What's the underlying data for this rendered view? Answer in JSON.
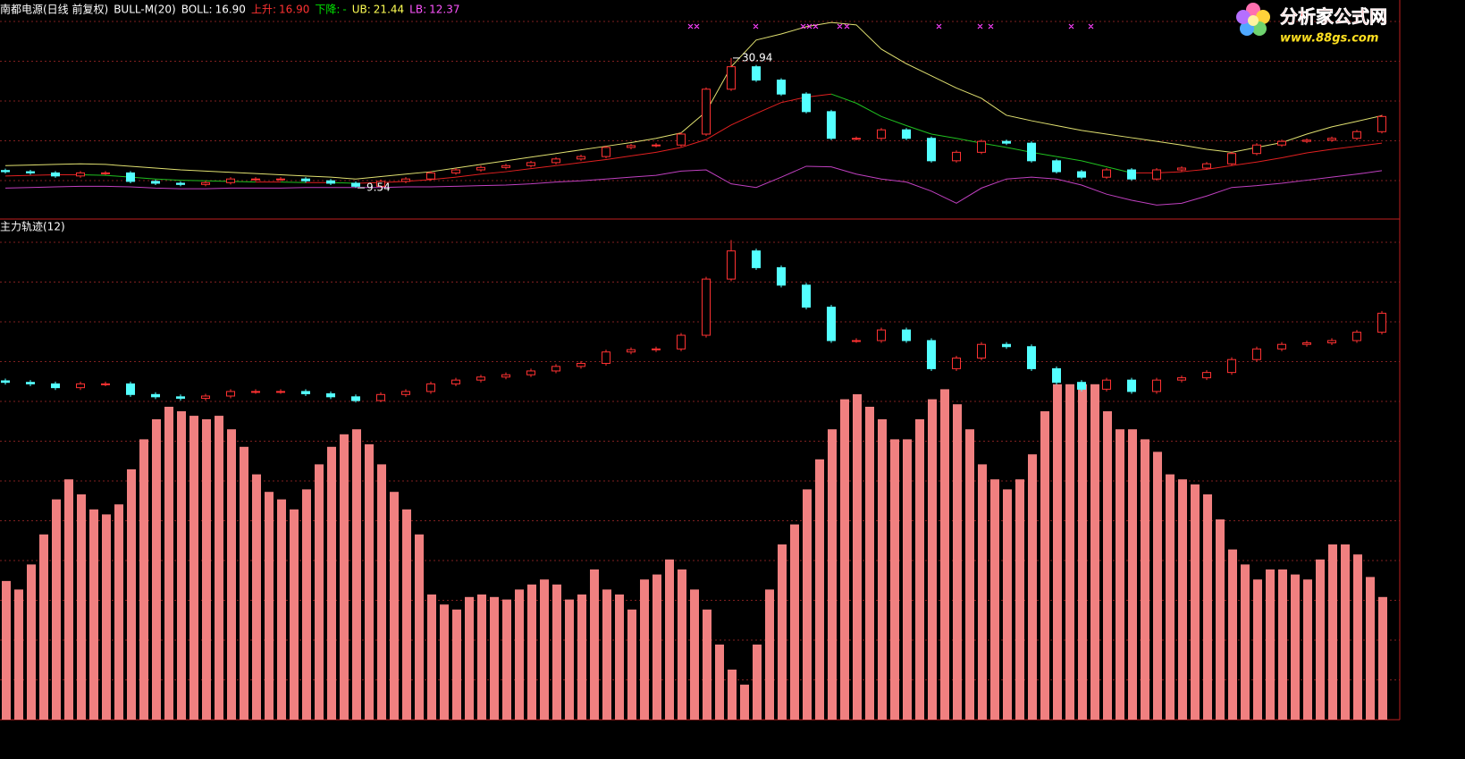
{
  "chart_data": [
    {
      "type": "candlestick",
      "title": "南都电源(日线 前复权)",
      "indicator": "BULL-M(20)",
      "legend": [
        {
          "name": "BOLL:",
          "value": "16.90",
          "color": "#ffffff"
        },
        {
          "name": "上升:",
          "value": "16.90",
          "color": "#ff3232"
        },
        {
          "name": "下降:",
          "value": "-",
          "color": "#00e600"
        },
        {
          "name": "UB:",
          "value": "21.44",
          "color": "#ffff54"
        },
        {
          "name": "LB:",
          "value": "12.37",
          "color": "#ff54ff"
        }
      ],
      "ylim": [
        4.4,
        40.5
      ],
      "up_color": "#ff3232",
      "down_color": "#54ffff",
      "open": [
        12.4,
        12.2,
        12.0,
        11.5,
        12.0,
        12.0,
        10.6,
        10.3,
        10.1,
        10.4,
        11.0,
        11.0,
        11.0,
        10.7,
        10.3,
        9.8,
        10.6,
        11.0,
        12.0,
        12.5,
        12.9,
        13.2,
        13.7,
        14.3,
        14.7,
        16.2,
        16.5,
        16.6,
        18.4,
        25.8,
        29.5,
        27.3,
        25.0,
        22.1,
        17.7,
        17.7,
        19.1,
        17.7,
        14.0,
        15.4,
        17.2,
        16.9,
        14.0,
        12.2,
        11.3,
        12.5,
        11.0,
        12.5,
        12.8,
        13.5,
        15.2,
        16.6,
        17.2,
        17.4,
        17.7,
        18.8
      ],
      "high": [
        12.7,
        12.5,
        12.3,
        12.3,
        12.3,
        12.3,
        10.9,
        10.6,
        10.7,
        11.3,
        11.3,
        11.3,
        11.3,
        11.0,
        10.6,
        10.9,
        11.3,
        12.3,
        12.8,
        13.2,
        13.5,
        14.0,
        14.6,
        15.0,
        16.5,
        16.8,
        16.9,
        18.7,
        26.1,
        30.94,
        29.8,
        27.6,
        25.3,
        22.4,
        18.0,
        19.4,
        19.4,
        18.0,
        15.7,
        17.5,
        17.5,
        17.2,
        14.3,
        12.5,
        12.8,
        12.8,
        12.8,
        13.1,
        13.8,
        15.5,
        16.9,
        17.5,
        17.7,
        18.0,
        19.1,
        21.6
      ],
      "low": [
        11.9,
        11.7,
        11.2,
        11.2,
        11.7,
        10.3,
        10.0,
        9.8,
        9.8,
        10.1,
        10.7,
        10.7,
        10.4,
        10.0,
        9.54,
        9.6,
        10.3,
        10.7,
        11.7,
        12.2,
        12.6,
        12.9,
        13.4,
        14.0,
        14.4,
        15.9,
        16.2,
        16.3,
        18.1,
        25.5,
        27.0,
        24.7,
        21.8,
        17.4,
        17.4,
        17.4,
        17.4,
        13.7,
        13.7,
        15.1,
        16.6,
        13.7,
        11.9,
        11.0,
        11.0,
        10.7,
        10.7,
        12.2,
        12.5,
        13.2,
        14.9,
        16.3,
        16.9,
        17.1,
        17.4,
        18.5
      ],
      "close": [
        12.2,
        12.0,
        11.5,
        12.0,
        12.0,
        10.6,
        10.3,
        10.1,
        10.4,
        11.0,
        11.0,
        11.0,
        10.7,
        10.3,
        9.8,
        10.6,
        11.0,
        12.0,
        12.5,
        12.9,
        13.2,
        13.7,
        14.3,
        14.7,
        16.2,
        16.5,
        16.6,
        18.4,
        25.8,
        29.5,
        27.3,
        25.0,
        22.1,
        17.7,
        17.7,
        19.1,
        17.7,
        14.0,
        15.4,
        17.2,
        16.9,
        14.0,
        12.2,
        11.3,
        12.5,
        11.0,
        12.5,
        12.8,
        13.5,
        15.2,
        16.6,
        17.2,
        17.4,
        17.7,
        18.8,
        21.3
      ],
      "upper": [
        13.2,
        13.3,
        13.4,
        13.5,
        13.4,
        13.1,
        12.8,
        12.5,
        12.3,
        12.1,
        11.9,
        11.7,
        11.5,
        11.3,
        11.0,
        11.4,
        11.8,
        12.2,
        12.8,
        13.4,
        14.0,
        14.6,
        15.2,
        15.8,
        16.4,
        17.0,
        17.7,
        18.6,
        22.1,
        29.5,
        33.9,
        34.9,
        36.1,
        36.8,
        36.4,
        32.4,
        30.0,
        28.0,
        26.0,
        24.3,
        21.5,
        20.6,
        19.8,
        19.0,
        18.4,
        17.8,
        17.2,
        16.6,
        15.9,
        15.4,
        16.2,
        17.0,
        18.4,
        19.6,
        20.5,
        21.44
      ],
      "middle": [
        11.5,
        11.6,
        11.7,
        11.7,
        11.6,
        11.3,
        11.0,
        10.8,
        10.7,
        10.6,
        10.5,
        10.5,
        10.4,
        10.4,
        10.3,
        10.4,
        10.6,
        10.9,
        11.3,
        11.8,
        12.2,
        12.7,
        13.2,
        13.7,
        14.2,
        14.8,
        15.4,
        16.2,
        17.5,
        19.9,
        21.8,
        23.6,
        24.5,
        25.0,
        23.5,
        21.3,
        19.8,
        18.4,
        17.7,
        16.9,
        16.2,
        15.4,
        14.7,
        14.0,
        13.0,
        12.0,
        12.0,
        12.2,
        12.6,
        13.2,
        13.8,
        14.5,
        15.3,
        15.9,
        16.4,
        16.9
      ],
      "lower": [
        9.5,
        9.6,
        9.7,
        9.8,
        9.8,
        9.7,
        9.5,
        9.4,
        9.4,
        9.5,
        9.5,
        9.5,
        9.6,
        9.6,
        9.6,
        9.6,
        9.7,
        9.7,
        9.8,
        9.9,
        10.0,
        10.2,
        10.5,
        10.7,
        11.0,
        11.3,
        11.6,
        12.3,
        12.5,
        10.2,
        9.6,
        11.3,
        13.1,
        13.0,
        11.8,
        11.0,
        10.5,
        9.0,
        7.0,
        9.5,
        11.0,
        11.3,
        11.0,
        10.0,
        8.5,
        7.5,
        6.7,
        7.0,
        8.2,
        9.6,
        9.9,
        10.3,
        10.8,
        11.3,
        11.8,
        12.37
      ],
      "upper_color": "#e0e070",
      "middle_up_color": "#e02020",
      "middle_down_color": "#20c020",
      "lower_color": "#c040c0",
      "high_label": "30.94",
      "low_label": "9.54"
    },
    {
      "type": "bar",
      "title": "主力轨迹(12)",
      "ylim": [
        0,
        100
      ],
      "color": "#f08080",
      "overlay_ylim": [
        -32.2,
        33.7
      ],
      "values": [
        27.7,
        26,
        31,
        37,
        44,
        48,
        45,
        42,
        41,
        43,
        50,
        56,
        60,
        62.5,
        61.6,
        60.7,
        60,
        60.7,
        58,
        54.5,
        49,
        45.5,
        44,
        42,
        46,
        51,
        54.5,
        57,
        58,
        55,
        51,
        45.5,
        42,
        37,
        25,
        23,
        22,
        24.5,
        25,
        24.5,
        24,
        26,
        27,
        28,
        27,
        24,
        25,
        30,
        26,
        25,
        22,
        28,
        29,
        32,
        30,
        26,
        22,
        15,
        10,
        7,
        15,
        26,
        35,
        39,
        46,
        52,
        58,
        64,
        65,
        62.5,
        60,
        56,
        56,
        60,
        64,
        66,
        63,
        58,
        51,
        48,
        46,
        48,
        53,
        61.6,
        67,
        67,
        67,
        67,
        61.6,
        58,
        58,
        56,
        53.5,
        49,
        48,
        47,
        45,
        40,
        34,
        31,
        28,
        30,
        30,
        29,
        28,
        32,
        35,
        35,
        33,
        28.5,
        24.5
      ]
    }
  ],
  "logo": {
    "title": "分析家公式网",
    "url": "www.88gs.com"
  }
}
